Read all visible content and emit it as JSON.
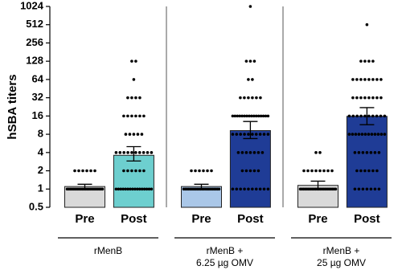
{
  "chart_data": {
    "type": "bar",
    "y_label": "hSBA titers",
    "yscale": "log2",
    "ylim": [
      0.5,
      1024
    ],
    "yticks": [
      0.5,
      1,
      2,
      4,
      8,
      16,
      32,
      64,
      128,
      256,
      512,
      1024
    ],
    "categories": [
      "Pre",
      "Post",
      "Pre",
      "Post",
      "Pre",
      "Post"
    ],
    "group_labels": [
      [
        "rMenB"
      ],
      [
        "rMenB +",
        "6.25 µg OMV"
      ],
      [
        "rMenB +",
        "25 µg OMV"
      ]
    ],
    "values": [
      1.1,
      3.6,
      1.1,
      9.2,
      1.15,
      15.8
    ],
    "error_low": [
      1.0,
      2.9,
      1.0,
      6.8,
      1.0,
      11.5
    ],
    "error_high": [
      1.2,
      5.0,
      1.2,
      13,
      1.35,
      22
    ],
    "colors": [
      "#d9d9d9",
      "#6dcfcf",
      "#aac7e8",
      "#1f3c96",
      "#d9d9d9",
      "#1f3c96"
    ],
    "points": [
      [
        1,
        1,
        1,
        1,
        1,
        1,
        1,
        1,
        1,
        1,
        1,
        1,
        1,
        1,
        1,
        1,
        1,
        1,
        1,
        1,
        1,
        1,
        1,
        1,
        2,
        2,
        2,
        2,
        2,
        2
      ],
      [
        128,
        128,
        64,
        32,
        32,
        32,
        32,
        16,
        16,
        16,
        16,
        16,
        16,
        8,
        8,
        8,
        8,
        8,
        4,
        4,
        4,
        4,
        4,
        4,
        4,
        4,
        4,
        4,
        2,
        2,
        2,
        2,
        2,
        2,
        1,
        1,
        1,
        1,
        1,
        1,
        1,
        1,
        1,
        1,
        1,
        1,
        1,
        1,
        1,
        1
      ],
      [
        1,
        1,
        1,
        1,
        1,
        1,
        1,
        1,
        1,
        1,
        1,
        1,
        1,
        1,
        1,
        1,
        1,
        1,
        1,
        1,
        1,
        1,
        2,
        2,
        2,
        2,
        2,
        2
      ],
      [
        1024,
        128,
        128,
        128,
        64,
        64,
        32,
        32,
        32,
        32,
        32,
        32,
        16,
        16,
        16,
        16,
        16,
        16,
        16,
        16,
        16,
        16,
        16,
        16,
        16,
        16,
        16,
        16,
        8,
        8,
        8,
        8,
        8,
        8,
        8,
        8,
        8,
        8,
        4,
        4,
        4,
        4,
        4,
        4,
        4,
        2,
        2,
        2,
        2,
        2,
        1,
        1,
        1,
        1,
        1,
        1,
        1,
        1,
        1,
        1
      ],
      [
        1,
        1,
        1,
        1,
        1,
        1,
        1,
        1,
        1,
        1,
        1,
        1,
        1,
        1,
        1,
        1,
        1,
        1,
        1,
        1,
        1,
        1,
        2,
        2,
        2,
        2,
        2,
        2,
        2,
        2,
        4,
        4
      ],
      [
        512,
        128,
        128,
        128,
        128,
        64,
        64,
        64,
        64,
        64,
        64,
        64,
        64,
        32,
        32,
        32,
        32,
        32,
        32,
        32,
        32,
        16,
        16,
        16,
        16,
        16,
        16,
        16,
        16,
        16,
        16,
        8,
        8,
        8,
        8,
        8,
        8,
        8,
        8,
        8,
        8,
        8,
        8,
        4,
        4,
        4,
        4,
        4,
        4,
        4,
        2,
        2,
        2,
        2,
        2,
        2,
        1,
        1,
        1,
        1,
        1,
        1,
        1
      ]
    ]
  }
}
